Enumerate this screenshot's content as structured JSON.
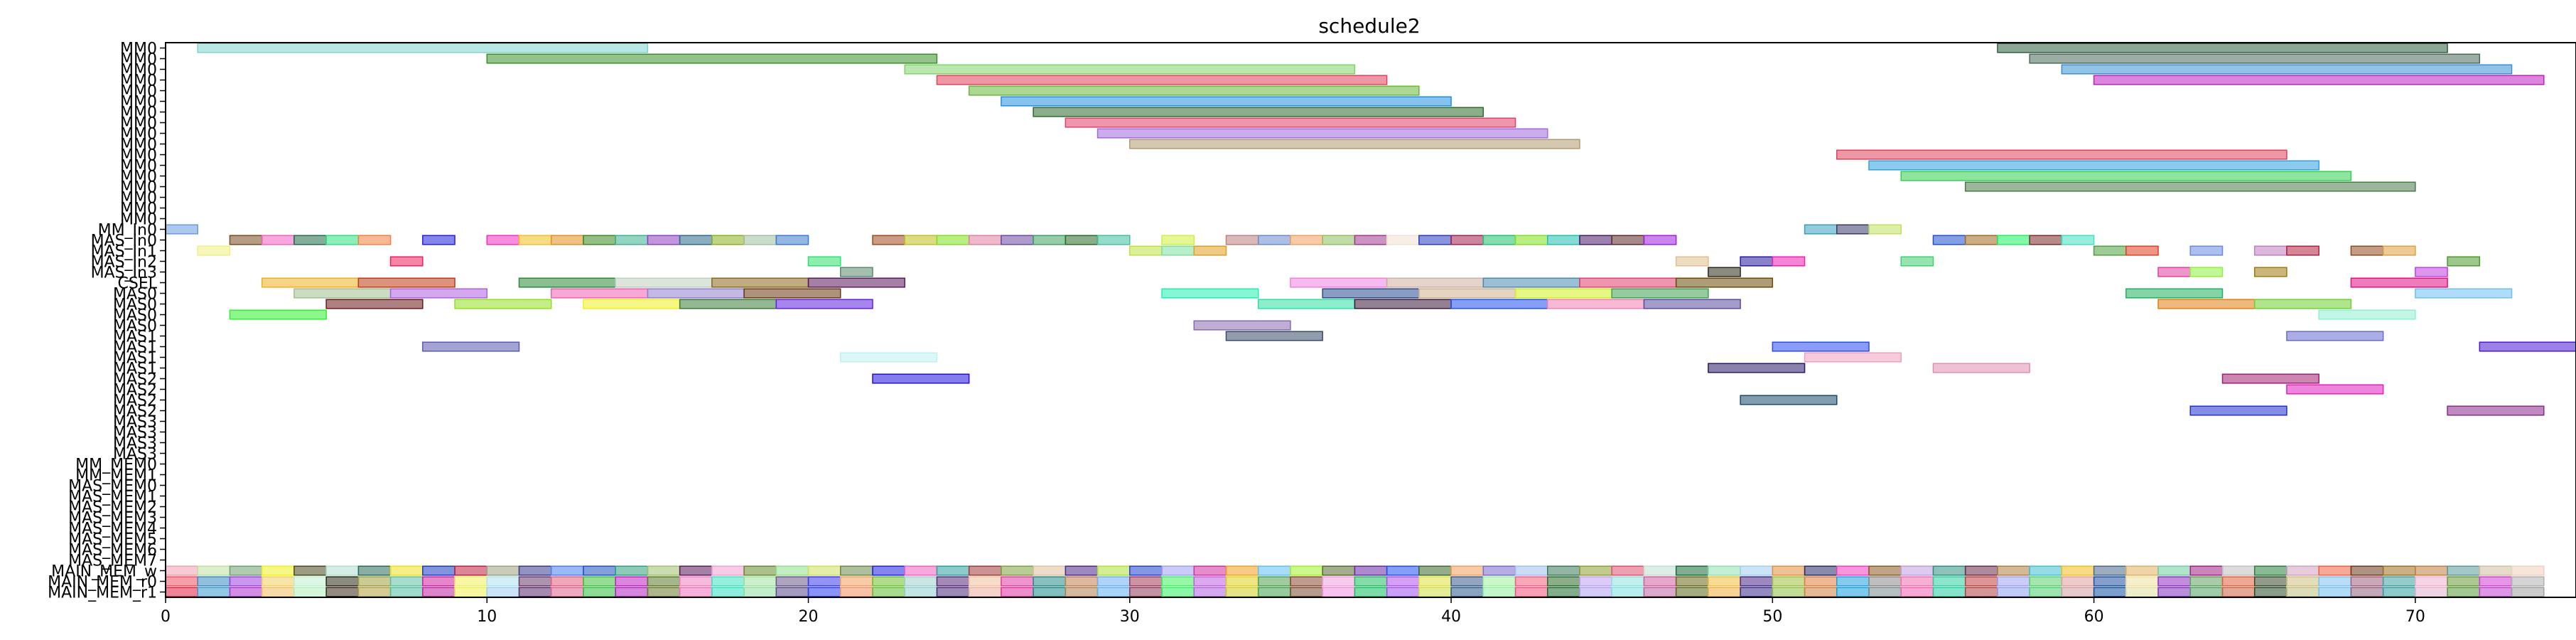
{
  "chart_data": {
    "type": "gantt",
    "title": "schedule2",
    "xlim": [
      0,
      75
    ],
    "xticks": [
      "0",
      "10",
      "20",
      "30",
      "40",
      "50",
      "60",
      "70"
    ],
    "rows": [
      "MM0",
      "MM0",
      "MM0",
      "MM0",
      "MM0",
      "MM0",
      "MM0",
      "MM0",
      "MM0",
      "MM0",
      "MM0",
      "MM0",
      "MM0",
      "MM0",
      "MM0",
      "MM0",
      "MM0",
      "MM_In0",
      "MAS_In0",
      "MAS_In1",
      "MAS_In2",
      "MAS_In3",
      "CSEL",
      "MAS0",
      "MAS0",
      "MAS0",
      "MAS0",
      "MAS1",
      "MAS1",
      "MAS1",
      "MAS1",
      "MAS2",
      "MAS2",
      "MAS2",
      "MAS2",
      "MAS3",
      "MAS3",
      "MAS3",
      "MAS3",
      "MM_MEM0",
      "MM_MEM1",
      "MAS_MEM0",
      "MAS_MEM1",
      "MAS_MEM2",
      "MAS_MEM3",
      "MAS_MEM4",
      "MAS_MEM5",
      "MAS_MEM6",
      "MAS_MEM7",
      "MAIN_MEM_w",
      "MAIN_MEM_r0",
      "MAIN_MEM_r1"
    ],
    "tasks": [
      {
        "row": 0,
        "start": 1,
        "end": 15,
        "color": "#7fd4cc"
      },
      {
        "row": 0,
        "start": 57,
        "end": 71,
        "color": "#2e5e3e"
      },
      {
        "row": 1,
        "start": 10,
        "end": 24,
        "color": "#3a8f2a"
      },
      {
        "row": 1,
        "start": 58,
        "end": 72,
        "color": "#4a6a5a"
      },
      {
        "row": 2,
        "start": 23,
        "end": 37,
        "color": "#7fd46a"
      },
      {
        "row": 2,
        "start": 59,
        "end": 73,
        "color": "#3a8fd4"
      },
      {
        "row": 3,
        "start": 24,
        "end": 38,
        "color": "#e0405a"
      },
      {
        "row": 3,
        "start": 60,
        "end": 74,
        "color": "#c020c0"
      },
      {
        "row": 4,
        "start": 25,
        "end": 39,
        "color": "#6ab83a"
      },
      {
        "row": 5,
        "start": 26,
        "end": 40,
        "color": "#2090e0"
      },
      {
        "row": 6,
        "start": 27,
        "end": 41,
        "color": "#2e6a2e"
      },
      {
        "row": 7,
        "start": 28,
        "end": 42,
        "color": "#e0406a"
      },
      {
        "row": 8,
        "start": 29,
        "end": 43,
        "color": "#a06ae0"
      },
      {
        "row": 9,
        "start": 30,
        "end": 44,
        "color": "#b09a70"
      },
      {
        "row": 10,
        "start": 52,
        "end": 66,
        "color": "#e0405a"
      },
      {
        "row": 11,
        "start": 53,
        "end": 67,
        "color": "#30a0e0"
      },
      {
        "row": 12,
        "start": 54,
        "end": 68,
        "color": "#30d050"
      },
      {
        "row": 13,
        "start": 56,
        "end": 70,
        "color": "#4a7a4a"
      },
      {
        "row": 17,
        "start": 0,
        "end": 1,
        "color": "#6a9ae0"
      },
      {
        "row": 17,
        "start": 51,
        "end": 52,
        "color": "#3aa0c0"
      },
      {
        "row": 17,
        "start": 52,
        "end": 53,
        "color": "#3a3a6a"
      },
      {
        "row": 17,
        "start": 53,
        "end": 54,
        "color": "#c0e060"
      },
      {
        "row": 18,
        "start": 2,
        "end": 3,
        "color": "#7a4a20"
      },
      {
        "row": 18,
        "start": 3,
        "end": 4,
        "color": "#f060c0"
      },
      {
        "row": 18,
        "start": 4,
        "end": 5,
        "color": "#206a4a"
      },
      {
        "row": 18,
        "start": 5,
        "end": 6,
        "color": "#30e080"
      },
      {
        "row": 18,
        "start": 6,
        "end": 7,
        "color": "#f08040"
      },
      {
        "row": 18,
        "start": 8,
        "end": 9,
        "color": "#2020e0"
      },
      {
        "row": 18,
        "start": 10,
        "end": 11,
        "color": "#f030c0"
      },
      {
        "row": 18,
        "start": 11,
        "end": 12,
        "color": "#f0c020"
      },
      {
        "row": 18,
        "start": 12,
        "end": 13,
        "color": "#e09020"
      },
      {
        "row": 18,
        "start": 13,
        "end": 14,
        "color": "#3a8a20"
      },
      {
        "row": 18,
        "start": 14,
        "end": 15,
        "color": "#40b090"
      },
      {
        "row": 18,
        "start": 15,
        "end": 16,
        "color": "#9040c0"
      },
      {
        "row": 18,
        "start": 16,
        "end": 17,
        "color": "#2a6a8a"
      },
      {
        "row": 18,
        "start": 17,
        "end": 18,
        "color": "#8ab020"
      },
      {
        "row": 18,
        "start": 18,
        "end": 19,
        "color": "#a0c0a0"
      },
      {
        "row": 18,
        "start": 19,
        "end": 20,
        "color": "#3a7ad0"
      },
      {
        "row": 18,
        "start": 22,
        "end": 23,
        "color": "#a04a20"
      },
      {
        "row": 18,
        "start": 23,
        "end": 24,
        "color": "#c0c020"
      },
      {
        "row": 18,
        "start": 24,
        "end": 25,
        "color": "#80e020"
      },
      {
        "row": 18,
        "start": 25,
        "end": 26,
        "color": "#e080a0"
      },
      {
        "row": 18,
        "start": 26,
        "end": 27,
        "color": "#6a4aa0"
      },
      {
        "row": 18,
        "start": 27,
        "end": 28,
        "color": "#40a060"
      },
      {
        "row": 18,
        "start": 28,
        "end": 29,
        "color": "#2a6a2a"
      },
      {
        "row": 18,
        "start": 29,
        "end": 30,
        "color": "#40c0a0"
      },
      {
        "row": 18,
        "start": 31,
        "end": 32,
        "color": "#d0f040"
      },
      {
        "row": 18,
        "start": 33,
        "end": 34,
        "color": "#c08080"
      },
      {
        "row": 18,
        "start": 34,
        "end": 35,
        "color": "#6a8ad0"
      },
      {
        "row": 18,
        "start": 35,
        "end": 36,
        "color": "#f0a060"
      },
      {
        "row": 18,
        "start": 36,
        "end": 37,
        "color": "#90c060"
      },
      {
        "row": 18,
        "start": 37,
        "end": 38,
        "color": "#a03a90"
      },
      {
        "row": 18,
        "start": 38,
        "end": 39,
        "color": "#f0e0d0"
      },
      {
        "row": 18,
        "start": 39,
        "end": 40,
        "color": "#2a3ac0"
      },
      {
        "row": 18,
        "start": 40,
        "end": 41,
        "color": "#a02050"
      },
      {
        "row": 18,
        "start": 41,
        "end": 42,
        "color": "#20c070"
      },
      {
        "row": 18,
        "start": 42,
        "end": 43,
        "color": "#80e020"
      },
      {
        "row": 18,
        "start": 43,
        "end": 44,
        "color": "#20c0b0"
      },
      {
        "row": 18,
        "start": 44,
        "end": 45,
        "color": "#4a1a6a"
      },
      {
        "row": 18,
        "start": 45,
        "end": 46,
        "color": "#5a2a2a"
      },
      {
        "row": 18,
        "start": 46,
        "end": 47,
        "color": "#a020e0"
      },
      {
        "row": 18,
        "start": 55,
        "end": 56,
        "color": "#2050d0"
      },
      {
        "row": 18,
        "start": 56,
        "end": 57,
        "color": "#a06a20"
      },
      {
        "row": 18,
        "start": 57,
        "end": 58,
        "color": "#20f060"
      },
      {
        "row": 18,
        "start": 58,
        "end": 59,
        "color": "#7a2a2a"
      },
      {
        "row": 18,
        "start": 59,
        "end": 60,
        "color": "#40e0c0"
      },
      {
        "row": 19,
        "start": 1,
        "end": 2,
        "color": "#f0f080"
      },
      {
        "row": 19,
        "start": 30,
        "end": 31,
        "color": "#c0e040"
      },
      {
        "row": 19,
        "start": 31,
        "end": 32,
        "color": "#80e0a0"
      },
      {
        "row": 19,
        "start": 32,
        "end": 33,
        "color": "#e0a020"
      },
      {
        "row": 19,
        "start": 60,
        "end": 61,
        "color": "#50a040"
      },
      {
        "row": 19,
        "start": 61,
        "end": 62,
        "color": "#e04020"
      },
      {
        "row": 19,
        "start": 63,
        "end": 64,
        "color": "#6a8ae0"
      },
      {
        "row": 19,
        "start": 65,
        "end": 66,
        "color": "#c080c0"
      },
      {
        "row": 19,
        "start": 66,
        "end": 67,
        "color": "#b02040"
      },
      {
        "row": 19,
        "start": 68,
        "end": 69,
        "color": "#904a20"
      },
      {
        "row": 19,
        "start": 69,
        "end": 70,
        "color": "#e0a040"
      },
      {
        "row": 20,
        "start": 7,
        "end": 8,
        "color": "#f02060"
      },
      {
        "row": 20,
        "start": 20,
        "end": 21,
        "color": "#30e070"
      },
      {
        "row": 20,
        "start": 47,
        "end": 48,
        "color": "#e0c090"
      },
      {
        "row": 20,
        "start": 49,
        "end": 50,
        "color": "#2a1aa0"
      },
      {
        "row": 20,
        "start": 50,
        "end": 51,
        "color": "#f020b0"
      },
      {
        "row": 20,
        "start": 54,
        "end": 55,
        "color": "#40d070"
      },
      {
        "row": 20,
        "start": 71,
        "end": 72,
        "color": "#4a9a30"
      },
      {
        "row": 21,
        "start": 21,
        "end": 22,
        "color": "#5a8a6a"
      },
      {
        "row": 21,
        "start": 48,
        "end": 49,
        "color": "#2a2a1a"
      },
      {
        "row": 21,
        "start": 62,
        "end": 63,
        "color": "#e040a0"
      },
      {
        "row": 21,
        "start": 63,
        "end": 64,
        "color": "#90f040"
      },
      {
        "row": 21,
        "start": 65,
        "end": 66,
        "color": "#a07a10"
      },
      {
        "row": 21,
        "start": 70,
        "end": 71,
        "color": "#c040e0"
      },
      {
        "row": 22,
        "start": 3,
        "end": 6,
        "color": "#f0b020"
      },
      {
        "row": 22,
        "start": 6,
        "end": 9,
        "color": "#c03a10"
      },
      {
        "row": 22,
        "start": 11,
        "end": 14,
        "color": "#2a8a3a"
      },
      {
        "row": 22,
        "start": 14,
        "end": 17,
        "color": "#c0d0c0"
      },
      {
        "row": 22,
        "start": 17,
        "end": 20,
        "color": "#8a6a1a"
      },
      {
        "row": 22,
        "start": 20,
        "end": 23,
        "color": "#5a1a5a"
      },
      {
        "row": 22,
        "start": 35,
        "end": 38,
        "color": "#f080e0"
      },
      {
        "row": 22,
        "start": 38,
        "end": 41,
        "color": "#d0b0a0"
      },
      {
        "row": 22,
        "start": 41,
        "end": 44,
        "color": "#4a8ab0"
      },
      {
        "row": 22,
        "start": 44,
        "end": 47,
        "color": "#e04070"
      },
      {
        "row": 22,
        "start": 47,
        "end": 50,
        "color": "#6a4a0a"
      },
      {
        "row": 22,
        "start": 68,
        "end": 71,
        "color": "#e01080"
      },
      {
        "row": 23,
        "start": 4,
        "end": 7,
        "color": "#a0c090"
      },
      {
        "row": 23,
        "start": 7,
        "end": 10,
        "color": "#b060e0"
      },
      {
        "row": 23,
        "start": 12,
        "end": 15,
        "color": "#f060b0"
      },
      {
        "row": 23,
        "start": 15,
        "end": 18,
        "color": "#9080d0"
      },
      {
        "row": 23,
        "start": 18,
        "end": 21,
        "color": "#6a3a10"
      },
      {
        "row": 23,
        "start": 31,
        "end": 34,
        "color": "#20f0b0"
      },
      {
        "row": 23,
        "start": 36,
        "end": 39,
        "color": "#2a4a8a"
      },
      {
        "row": 23,
        "start": 39,
        "end": 42,
        "color": "#d0b090"
      },
      {
        "row": 23,
        "start": 42,
        "end": 45,
        "color": "#d0f020"
      },
      {
        "row": 23,
        "start": 45,
        "end": 48,
        "color": "#40a050"
      },
      {
        "row": 23,
        "start": 61,
        "end": 64,
        "color": "#20b060"
      },
      {
        "row": 23,
        "start": 70,
        "end": 73,
        "color": "#70c0f0"
      },
      {
        "row": 24,
        "start": 5,
        "end": 8,
        "color": "#6a1a1a"
      },
      {
        "row": 24,
        "start": 9,
        "end": 12,
        "color": "#90e020"
      },
      {
        "row": 24,
        "start": 13,
        "end": 16,
        "color": "#f0f020"
      },
      {
        "row": 24,
        "start": 16,
        "end": 19,
        "color": "#3a7a3a"
      },
      {
        "row": 24,
        "start": 19,
        "end": 22,
        "color": "#6020e0"
      },
      {
        "row": 24,
        "start": 34,
        "end": 37,
        "color": "#30e0a0"
      },
      {
        "row": 24,
        "start": 37,
        "end": 40,
        "color": "#3a1a3a"
      },
      {
        "row": 24,
        "start": 40,
        "end": 43,
        "color": "#2050f0"
      },
      {
        "row": 24,
        "start": 43,
        "end": 46,
        "color": "#f080b0"
      },
      {
        "row": 24,
        "start": 46,
        "end": 49,
        "color": "#5a4aa0"
      },
      {
        "row": 24,
        "start": 62,
        "end": 65,
        "color": "#e08010"
      },
      {
        "row": 24,
        "start": 65,
        "end": 68,
        "color": "#70d030"
      },
      {
        "row": 25,
        "start": 2,
        "end": 5,
        "color": "#30f030"
      },
      {
        "row": 25,
        "start": 67,
        "end": 70,
        "color": "#90f0d0"
      },
      {
        "row": 26,
        "start": 32,
        "end": 35,
        "color": "#8a6ab0"
      },
      {
        "row": 27,
        "start": 33,
        "end": 36,
        "color": "#3a4a6a"
      },
      {
        "row": 27,
        "start": 66,
        "end": 69,
        "color": "#6a6ad0"
      },
      {
        "row": 28,
        "start": 8,
        "end": 11,
        "color": "#5a5ab0"
      },
      {
        "row": 28,
        "start": 50,
        "end": 53,
        "color": "#2a4af0"
      },
      {
        "row": 28,
        "start": 72,
        "end": 75,
        "color": "#4a1ad0"
      },
      {
        "row": 29,
        "start": 21,
        "end": 24,
        "color": "#c0f0f0"
      },
      {
        "row": 29,
        "start": 51,
        "end": 54,
        "color": "#f0a0c0"
      },
      {
        "row": 30,
        "start": 48,
        "end": 51,
        "color": "#2a1a6a"
      },
      {
        "row": 30,
        "start": 55,
        "end": 58,
        "color": "#e090b0"
      },
      {
        "row": 31,
        "start": 22,
        "end": 25,
        "color": "#2010e0"
      },
      {
        "row": 31,
        "start": 64,
        "end": 67,
        "color": "#a02070"
      },
      {
        "row": 32,
        "start": 66,
        "end": 69,
        "color": "#e020c0"
      },
      {
        "row": 33,
        "start": 49,
        "end": 52,
        "color": "#1a4a6a"
      },
      {
        "row": 34,
        "start": 63,
        "end": 66,
        "color": "#2030d0"
      },
      {
        "row": 34,
        "start": 71,
        "end": 74,
        "color": "#8a2a8a"
      }
    ],
    "mem_row_w_colors": [
      "#f0a0b0",
      "#c0e0a0",
      "#70a070",
      "#f0f020",
      "#4a4a20",
      "#b0e0d0",
      "#2a6a5a",
      "#f0e020",
      "#1a3ac0",
      "#c02040",
      "#a0a080",
      "#3a3a8a",
      "#4a80f0",
      "#2050c0",
      "#30a080",
      "#a0c070",
      "#5a1a5a",
      "#f0a0d0",
      "#6a8a2a",
      "#90e090",
      "#d0e060",
      "#6a8a4a",
      "#2020e0",
      "#f060c0",
      "#30a0a0",
      "#a03a3a",
      "#80a040",
      "#e0c0a0",
      "#4a2a8a",
      "#b0e040",
      "#2040d0",
      "#a0a0f0",
      "#d030a0",
      "#f0a020",
      "#60c0f0",
      "#a0f030",
      "#5a6a30",
      "#6a2aa0",
      "#2050f0",
      "#3a6a2a",
      "#f0a060",
      "#7a6ad0",
      "#a0c0f0",
      "#3a7a5a",
      "#90a030",
      "#e05070",
      "#c0e0d0",
      "#1a6a3a",
      "#90e0b0",
      "#a0d0f0",
      "#e09040",
      "#2a2a6a",
      "#f040c0",
      "#8a5a20",
      "#c0a0e0",
      "#309080",
      "#6a2a4a",
      "#b08040",
      "#40c0d0",
      "#f0c020",
      "#4a6a8a",
      "#e0b060",
      "#70d0a0",
      "#a02080",
      "#c0c0c0",
      "#2a8040",
      "#d0a0c0",
      "#f06040",
      "#6a3a1a",
      "#a07020",
      "#c08040",
      "#5a9a9a",
      "#d0c0a0",
      "#f0d0c0"
    ],
    "mem_row_r0_colors": [
      "#f05060",
      "#3a8ac0",
      "#a040e0",
      "#f0d060",
      "#c0f0d0",
      "#2a2a1a",
      "#a0a040",
      "#60c0a0",
      "#d020a0",
      "#f0f060",
      "#b0e0f0",
      "#6a3a6a",
      "#e06080",
      "#40c040",
      "#c020c0",
      "#5a7a2a",
      "#f080c0",
      "#40e0c0",
      "#a0e0a0",
      "#6a5a8a",
      "#3a3af0",
      "#f0a060",
      "#70c030",
      "#a0d0d0",
      "#5a2a7a",
      "#f0c0a0",
      "#e040a0",
      "#2a8a8a",
      "#c08050",
      "#70b0f0",
      "#a03a5a",
      "#40f060",
      "#c060e0",
      "#e0d020",
      "#50a050",
      "#8a4a30",
      "#f0a0e0",
      "#20c060",
      "#b050f0",
      "#e0e040",
      "#3a5a8a",
      "#a0f0a0",
      "#f06080",
      "#2a6a2a",
      "#c0a0f0",
      "#90e0e0",
      "#d060a0",
      "#6a6a1a",
      "#f0c040",
      "#4a2a8a",
      "#a0c040",
      "#e08040",
      "#20a0e0",
      "#8a8a8a",
      "#f070b0",
      "#30d0a0",
      "#c04040",
      "#a0a0f0",
      "#5ad070",
      "#e0a0a0",
      "#2050a0",
      "#f0e0a0",
      "#9030c0",
      "#60a060",
      "#e06040",
      "#3a4a2a",
      "#d0c080",
      "#80c0f0",
      "#a06080",
      "#40a0a0",
      "#f0b0d0",
      "#6a9a3a",
      "#d040d0",
      "#b0b0b0"
    ],
    "mem_row_r1_colors": [
      "#e02040",
      "#3a9ad0",
      "#b030d0",
      "#f0c060",
      "#b0f0c0",
      "#3a2a1a",
      "#b0a040",
      "#50c0a0",
      "#c020a0",
      "#f0f050",
      "#a0d0f0",
      "#5a2a6a",
      "#e06090",
      "#30c040",
      "#b020c0",
      "#6a7a2a",
      "#f070c0",
      "#30e0c0",
      "#90e0a0",
      "#5a4a8a",
      "#2a3af0",
      "#f09060",
      "#60c030",
      "#90d0d0",
      "#4a2a7a",
      "#f0b0a0",
      "#e030a0",
      "#1a8a8a",
      "#b08050",
      "#60b0f0",
      "#903a5a",
      "#30f060",
      "#b060e0",
      "#d0d020",
      "#40a050",
      "#7a4a30",
      "#f090e0",
      "#10c060",
      "#a050f0",
      "#d0e040",
      "#2a5a8a",
      "#90f0a0",
      "#f05080",
      "#1a6a2a",
      "#b0a0f0",
      "#80e0e0",
      "#c060a0",
      "#5a6a1a",
      "#f0b040",
      "#3a2a8a",
      "#90c040",
      "#d08040",
      "#10a0e0",
      "#7a8a8a",
      "#f060b0",
      "#20d0a0",
      "#b04040",
      "#90a0f0",
      "#4ad070",
      "#d0a0a0",
      "#1050a0",
      "#e0e0a0",
      "#8030c0",
      "#50a060",
      "#d06040",
      "#2a4a2a",
      "#c0c080",
      "#70c0f0",
      "#906080",
      "#30a0a0",
      "#e0b0d0",
      "#5a9a3a",
      "#c040d0",
      "#a0a0a0"
    ]
  }
}
